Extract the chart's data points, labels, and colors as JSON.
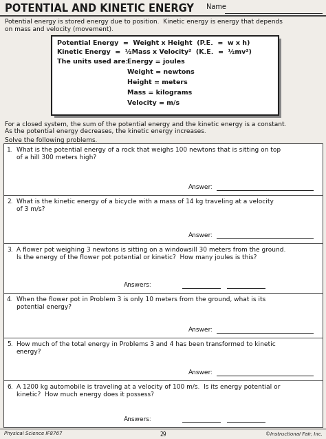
{
  "title": "POTENTIAL AND KINETIC ENERGY",
  "name_label": "Name",
  "intro_text1": "Potential energy is stored energy due to position.  Kinetic energy is energy that depends",
  "intro_text2": "on mass and velocity (movement).",
  "formula_line1": "Potential Energy  =  Weight x Height  (P.E.  =  w x h)",
  "formula_line2": "Kinetic Energy  =  ½Mass x Velocity²  (K.E.  =  ½mv²)",
  "units_label": "The units used are:",
  "units_lines": [
    "Energy = joules",
    "Weight = newtons",
    "Height = meters",
    "Mass = kilograms",
    "Velocity = m/s"
  ],
  "closed1": "For a closed system, the sum of the potential energy and the kinetic energy is a constant.",
  "closed2": "As the potential energy decreases, the kinetic energy increases.",
  "solve_text": "Solve the following problems.",
  "problems": [
    {
      "num": "1.",
      "text1": "What is the potential energy of a rock that weighs 100 newtons that is sitting on top",
      "text2": "of a hill 300 meters high?",
      "answer_label": "Answer:",
      "two_answers": false
    },
    {
      "num": "2.",
      "text1": "What is the kinetic energy of a bicycle with a mass of 14 kg traveling at a velocity",
      "text2": "of 3 m/s?",
      "answer_label": "Answer:",
      "two_answers": false
    },
    {
      "num": "3.",
      "text1": "A flower pot weighing 3 newtons is sitting on a windowsill 30 meters from the ground.",
      "text2": "Is the energy of the flower pot potential or kinetic?  How many joules is this?",
      "answer_label": "Answers:",
      "two_answers": true
    },
    {
      "num": "4.",
      "text1": "When the flower pot in Problem 3 is only 10 meters from the ground, what is its",
      "text2": "potential energy?",
      "answer_label": "Answer:",
      "two_answers": false
    },
    {
      "num": "5.",
      "text1": "How much of the total energy in Problems 3 and 4 has been transformed to kinetic",
      "text2": "energy?",
      "answer_label": "Answer:",
      "two_answers": false
    },
    {
      "num": "6.",
      "text1": "A 1200 kg automobile is traveling at a velocity of 100 m/s.  Is its energy potential or",
      "text2": "kinetic?  How much energy does it possess?",
      "answer_label": "Answers:",
      "two_answers": true
    }
  ],
  "footer_left": "Physical Science IF8767",
  "footer_center": "29",
  "footer_right": "©Instructional Fair, Inc.",
  "bg_color": "#f0ede8",
  "text_color": "#1a1a1a",
  "box_bg": "#ffffff",
  "line_color": "#444444"
}
